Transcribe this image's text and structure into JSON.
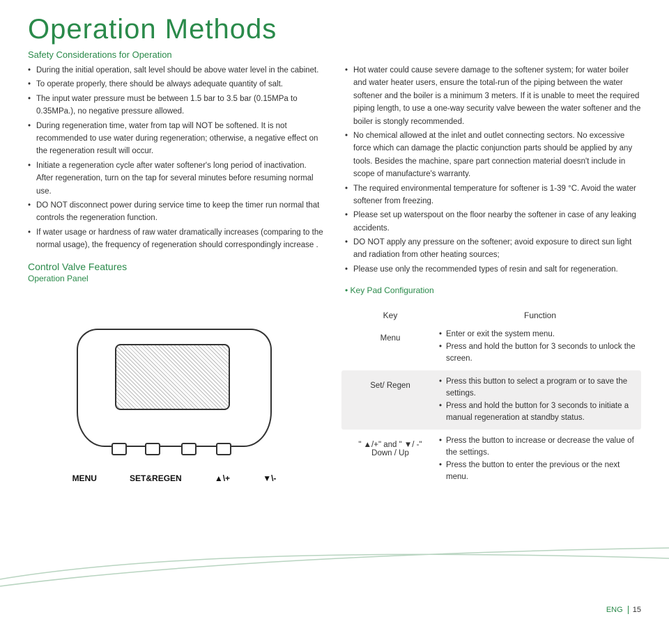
{
  "title": "Operation Methods",
  "subtitle": "Safety Considerations for Operation",
  "left_bullets": [
    "During the initial operation, salt level should be above water level in the cabinet.",
    "To operate properly, there should be always adequate quantity of salt.",
    "The input water pressure must be between 1.5 bar to 3.5 bar (0.15MPa to 0.35MPa.), no negative pressure allowed.",
    "During regeneration time, water from tap will NOT be softened. It is not recommended to use water during regeneration; otherwise, a negative effect on the regeneration result will occur.",
    "Initiate a regeneration cycle after water softener's long period of inactivation. After regeneration, turn on the tap for several minutes before resuming normal use.",
    "DO NOT disconnect power during service time to keep the timer run normal that controls the regeneration function.",
    "If water usage or hardness of raw water dramatically increases (comparing to the normal usage), the frequency of regeneration should correspondingly increase ."
  ],
  "right_bullets": [
    "Hot water could cause severe damage to the softener system; for water boiler and water heater users, ensure the total-run of the piping between the water softener and the boiler is a minimum 3 meters. If it is unable to meet the required piping length, to use a one-way security valve beween the water softener and the boiler is stongly recommended.",
    "No chemical allowed at the inlet and outlet connecting sectors. No excessive force which can damage the plactic conjunction parts should be applied by any tools. Besides the machine, spare part connection material doesn't include in scope of manufacture's warranty.",
    "The required environmental temperature for softener is 1-39 °C. Avoid the water softener from freezing.",
    "Please set up waterspout on the floor nearby the softener in case of any leaking accidents.",
    "DO NOT apply any pressure on the softener; avoid exposure to direct sun light and radiation from other heating sources;",
    "Please use only the recommended types of resin and salt for regeneration."
  ],
  "control_valve_heading": "Control Valve Features",
  "operation_panel_label": "Operation Panel",
  "keypad_config_label": "Key Pad Configuration",
  "panel_buttons": {
    "b1": "MENU",
    "b2": "SET&REGEN",
    "b3": "▲\\+",
    "b4": "▼\\-"
  },
  "keypad_headers": {
    "key": "Key",
    "func": "Function"
  },
  "keypad_rows": [
    {
      "shaded": false,
      "key": "Menu",
      "functions": [
        "Enter or exit the system menu.",
        "Press and hold the button for 3 seconds to unlock the screen."
      ]
    },
    {
      "shaded": true,
      "key": "Set/ Regen",
      "functions": [
        "Press this button to select a program or to save the settings.",
        "Press and hold the button for 3 seconds to initiate a manual regeneration at standby status."
      ]
    },
    {
      "shaded": false,
      "key": "\" ▲/+\" and \" ▼/ -\"\nDown / Up",
      "functions": [
        "Press the button to increase or decrease the value of the settings.",
        "Press the button to enter the previous or the next menu."
      ]
    }
  ],
  "footer": {
    "lang": "ENG",
    "page": "15"
  },
  "colors": {
    "accent": "#2a8a4a",
    "text": "#333333",
    "shade": "#f0efef",
    "swoosh": "#b8d4c0"
  }
}
